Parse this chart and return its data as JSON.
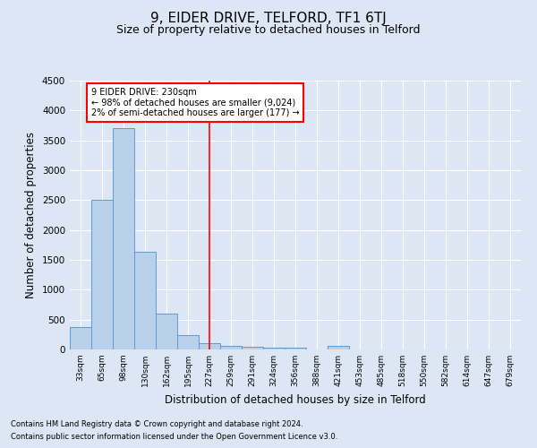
{
  "title": "9, EIDER DRIVE, TELFORD, TF1 6TJ",
  "subtitle": "Size of property relative to detached houses in Telford",
  "xlabel": "Distribution of detached houses by size in Telford",
  "ylabel": "Number of detached properties",
  "categories": [
    "33sqm",
    "65sqm",
    "98sqm",
    "130sqm",
    "162sqm",
    "195sqm",
    "227sqm",
    "259sqm",
    "291sqm",
    "324sqm",
    "356sqm",
    "388sqm",
    "421sqm",
    "453sqm",
    "485sqm",
    "518sqm",
    "550sqm",
    "582sqm",
    "614sqm",
    "647sqm",
    "679sqm"
  ],
  "values": [
    370,
    2500,
    3700,
    1630,
    600,
    235,
    100,
    60,
    50,
    35,
    35,
    0,
    55,
    0,
    0,
    0,
    0,
    0,
    0,
    0,
    0
  ],
  "bar_color": "#b8d0ea",
  "bar_edge_color": "#5b9bd5",
  "background_color": "#dce6f5",
  "grid_color": "#ffffff",
  "red_line_index": 6,
  "ylim": [
    0,
    4500
  ],
  "yticks": [
    0,
    500,
    1000,
    1500,
    2000,
    2500,
    3000,
    3500,
    4000,
    4500
  ],
  "annotation_title": "9 EIDER DRIVE: 230sqm",
  "annotation_line1": "← 98% of detached houses are smaller (9,024)",
  "annotation_line2": "2% of semi-detached houses are larger (177) →",
  "footnote1": "Contains HM Land Registry data © Crown copyright and database right 2024.",
  "footnote2": "Contains public sector information licensed under the Open Government Licence v3.0.",
  "title_fontsize": 11,
  "subtitle_fontsize": 9,
  "xlabel_fontsize": 8.5,
  "ylabel_fontsize": 8.5
}
